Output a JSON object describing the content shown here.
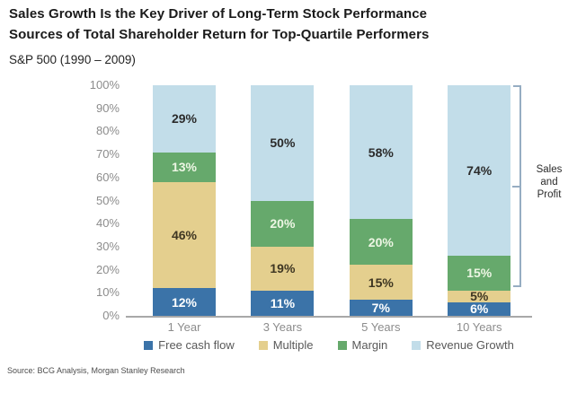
{
  "header": {
    "title_line1": "Sales Growth Is the Key Driver of Long-Term Stock Performance",
    "title_line2": "Sources of Total Shareholder Return for Top-Quartile Performers",
    "subtitle": "S&P 500 (1990 – 2009)"
  },
  "annotation": {
    "lines": [
      "Sales",
      "and",
      "Profit"
    ]
  },
  "footer": {
    "source": "Source: BCG Analysis, Morgan Stanley Research"
  },
  "chart_data": {
    "type": "bar",
    "stacked": true,
    "title": "Sources of Total Shareholder Return for Top-Quartile Performers",
    "subtitle": "S&P 500 (1990 – 2009)",
    "categories": [
      "1 Year",
      "3 Years",
      "5 Years",
      "10 Years"
    ],
    "series": [
      {
        "name": "Free cash flow",
        "color": "#3b73a8",
        "label_color": "#ffffff",
        "values": [
          12,
          11,
          7,
          6
        ]
      },
      {
        "name": "Multiple",
        "color": "#e4cf8e",
        "label_color": "#3e3622",
        "values": [
          46,
          19,
          15,
          5
        ]
      },
      {
        "name": "Margin",
        "color": "#66a96c",
        "label_color": "#edf6e4",
        "values": [
          13,
          20,
          20,
          15
        ]
      },
      {
        "name": "Revenue Growth",
        "color": "#c2dde9",
        "label_color": "#2b2b2b",
        "values": [
          29,
          50,
          58,
          74
        ]
      }
    ],
    "value_suffix": "%",
    "ylim": [
      0,
      100
    ],
    "y_ticks": [
      "100%",
      "90%",
      "80%",
      "70%",
      "60%",
      "50%",
      "40%",
      "30%",
      "20%",
      "10%",
      "0%"
    ],
    "grid": false,
    "legend_position": "bottom",
    "axis_color": "#a8a8a8",
    "tick_label_color": "#8c8c8c",
    "annotation_bracket": {
      "label": "Sales and Profit",
      "covers": "Margin + Revenue Growth segments of 10 Years bar",
      "span_percent": [
        11,
        100
      ]
    }
  }
}
